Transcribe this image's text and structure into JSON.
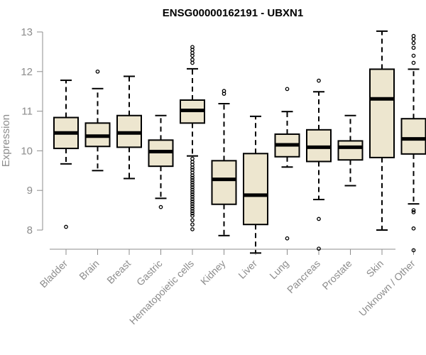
{
  "chart_data": {
    "type": "boxplot",
    "title": "ENSG00000162191 - UBXN1",
    "xlabel": "",
    "ylabel": "Expression",
    "ylim": [
      7.4,
      13.0
    ],
    "yticks": [
      8,
      9,
      10,
      11,
      12,
      13
    ],
    "box_fill": "#ede6cf",
    "axis_color": "#8c8c8c",
    "categories": [
      "Bladder",
      "Brain",
      "Breast",
      "Gastric",
      "Hematopoietic cells",
      "Kidney",
      "Liver",
      "Lung",
      "Pancreas",
      "Prostate",
      "Skin",
      "Unknown / Other"
    ],
    "boxes": [
      {
        "name": "Bladder",
        "whisker_low": 9.67,
        "q1": 10.06,
        "median": 10.45,
        "q3": 10.84,
        "whisker_high": 11.78,
        "outliers": [
          8.08
        ]
      },
      {
        "name": "Brain",
        "whisker_low": 9.5,
        "q1": 10.11,
        "median": 10.37,
        "q3": 10.7,
        "whisker_high": 11.57,
        "outliers": [
          12.0
        ]
      },
      {
        "name": "Breast",
        "whisker_low": 9.3,
        "q1": 10.09,
        "median": 10.45,
        "q3": 10.89,
        "whisker_high": 11.88,
        "outliers": []
      },
      {
        "name": "Gastric",
        "whisker_low": 8.8,
        "q1": 9.61,
        "median": 9.98,
        "q3": 10.27,
        "whisker_high": 10.89,
        "outliers": [
          8.58
        ]
      },
      {
        "name": "Hematopoietic cells",
        "whisker_low": 9.87,
        "q1": 10.7,
        "median": 11.02,
        "q3": 11.28,
        "whisker_high": 12.07,
        "outliers": [
          12.22,
          12.3,
          12.4,
          12.47,
          12.55,
          12.62,
          9.8,
          9.72,
          9.65,
          9.58,
          9.52,
          9.45,
          9.38,
          9.32,
          9.26,
          9.2,
          9.14,
          9.08,
          9.02,
          8.96,
          8.9,
          8.84,
          8.78,
          8.72,
          8.66,
          8.6,
          8.54,
          8.48,
          8.42,
          8.36,
          8.25,
          8.14,
          8.02
        ]
      },
      {
        "name": "Kidney",
        "whisker_low": 7.86,
        "q1": 8.65,
        "median": 9.28,
        "q3": 9.75,
        "whisker_high": 11.19,
        "outliers": [
          11.44,
          11.51
        ]
      },
      {
        "name": "Liver",
        "whisker_low": 7.42,
        "q1": 8.14,
        "median": 8.88,
        "q3": 9.93,
        "whisker_high": 10.87,
        "outliers": []
      },
      {
        "name": "Lung",
        "whisker_low": 9.59,
        "q1": 9.85,
        "median": 10.15,
        "q3": 10.42,
        "whisker_high": 10.99,
        "outliers": [
          11.56,
          7.79
        ]
      },
      {
        "name": "Pancreas",
        "whisker_low": 8.77,
        "q1": 9.73,
        "median": 10.09,
        "q3": 10.53,
        "whisker_high": 11.49,
        "outliers": [
          11.77,
          8.28,
          7.53
        ]
      },
      {
        "name": "Prostate",
        "whisker_low": 9.12,
        "q1": 9.77,
        "median": 10.09,
        "q3": 10.25,
        "whisker_high": 10.89,
        "outliers": []
      },
      {
        "name": "Skin",
        "whisker_low": 8.0,
        "q1": 9.83,
        "median": 11.31,
        "q3": 12.06,
        "whisker_high": 13.02,
        "outliers": []
      },
      {
        "name": "Unknown / Other",
        "whisker_low": 8.66,
        "q1": 9.92,
        "median": 10.3,
        "q3": 10.81,
        "whisker_high": 12.06,
        "outliers": [
          12.22,
          12.4,
          12.6,
          12.72,
          12.82,
          12.9,
          8.5,
          8.45,
          8.04,
          7.49
        ]
      }
    ]
  }
}
